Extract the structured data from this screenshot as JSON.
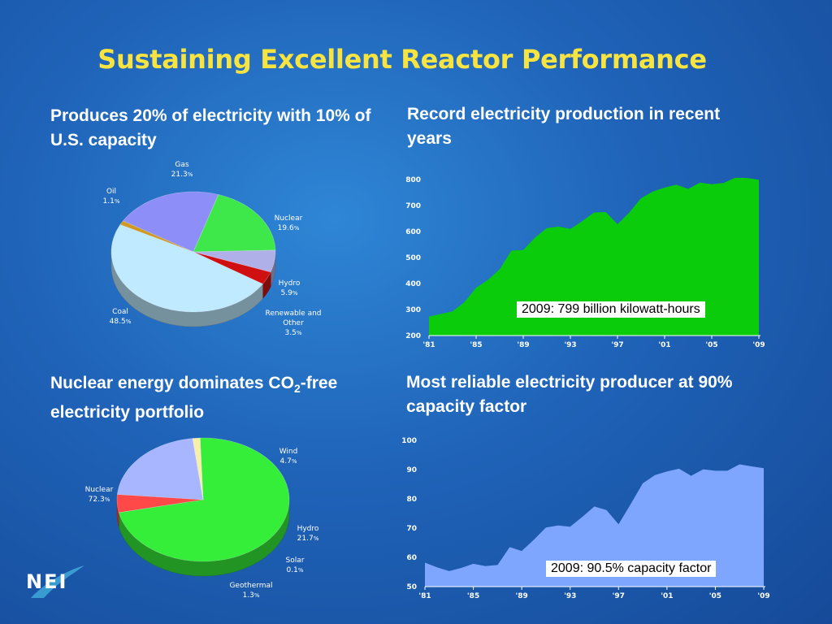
{
  "slide": {
    "title": "Sustaining Excellent Reactor Performance"
  },
  "headings": {
    "top_left": "Produces 20% of electricity with 10% of U.S. capacity",
    "top_right": "Record electricity production in recent years",
    "bottom_left_pre": "Nuclear energy dominates CO",
    "bottom_left_sub": "2",
    "bottom_left_post": "-free electricity portfolio",
    "bottom_right": "Most reliable electricity producer at 90% capacity factor"
  },
  "logo": {
    "text": "NEI"
  },
  "colors": {
    "background": "#1f63b8",
    "title": "#f7e440",
    "production_area": "#0acc0a",
    "capacity_area": "#7ea6ff"
  },
  "chart_data": [
    {
      "id": "generation-mix",
      "type": "pie",
      "title": "",
      "slices": [
        {
          "name": "Gas",
          "value": 21.3,
          "color": "#8e8ef8"
        },
        {
          "name": "Nuclear",
          "value": 19.6,
          "color": "#3fe84a"
        },
        {
          "name": "Hydro",
          "value": 5.9,
          "color": "#b0b0e8"
        },
        {
          "name": "Renewable and Other",
          "value": 3.5,
          "color": "#d01010"
        },
        {
          "name": "Coal",
          "value": 48.5,
          "color": "#bfeaff"
        },
        {
          "name": "Oil",
          "value": 1.1,
          "color": "#d09a20"
        }
      ],
      "labels": [
        {
          "name": "Gas",
          "value": "21.3"
        },
        {
          "name": "Oil",
          "value": "1.1"
        },
        {
          "name": "Nuclear",
          "value": "19.6"
        },
        {
          "name": "Hydro",
          "value": "5.9"
        },
        {
          "name": "Renewable and Other",
          "value": "3.5"
        },
        {
          "name": "Coal",
          "value": "48.5"
        }
      ]
    },
    {
      "id": "electricity-production",
      "type": "area",
      "title": "",
      "x_tick_labels": [
        "'81",
        "'85",
        "'89",
        "'93",
        "'97",
        "'01",
        "'05",
        "'09"
      ],
      "y_tick_labels": [
        "200",
        "300",
        "400",
        "500",
        "600",
        "700",
        "800"
      ],
      "ylim": [
        200,
        800
      ],
      "xlim": [
        1981,
        2009
      ],
      "x": [
        1981,
        1982,
        1983,
        1984,
        1985,
        1986,
        1987,
        1988,
        1989,
        1990,
        1991,
        1992,
        1993,
        1994,
        1995,
        1996,
        1997,
        1998,
        1999,
        2000,
        2001,
        2002,
        2003,
        2004,
        2005,
        2006,
        2007,
        2008,
        2009
      ],
      "values": [
        273,
        283,
        293,
        328,
        384,
        414,
        455,
        527,
        529,
        577,
        613,
        619,
        610,
        640,
        673,
        675,
        628,
        673,
        728,
        754,
        769,
        780,
        764,
        788,
        782,
        787,
        807,
        806,
        799
      ],
      "annotation": "2009: 799 billion kilowatt-hours"
    },
    {
      "id": "co2-free-portfolio",
      "type": "pie",
      "title": "",
      "slices": [
        {
          "name": "Nuclear",
          "value": 72.3,
          "color": "#35ee3a"
        },
        {
          "name": "Wind",
          "value": 4.7,
          "color": "#ff4848"
        },
        {
          "name": "Hydro",
          "value": 21.7,
          "color": "#a8b6ff"
        },
        {
          "name": "Solar",
          "value": 0.1,
          "color": "#f0f0a0"
        },
        {
          "name": "Geothermal",
          "value": 1.3,
          "color": "#f8f0a8"
        }
      ],
      "labels": [
        {
          "name": "Wind",
          "value": "4.7"
        },
        {
          "name": "Nuclear",
          "value": "72.3"
        },
        {
          "name": "Hydro",
          "value": "21.7"
        },
        {
          "name": "Solar",
          "value": "0.1"
        },
        {
          "name": "Geothermal",
          "value": "1.3"
        }
      ]
    },
    {
      "id": "capacity-factor",
      "type": "area",
      "title": "",
      "x_tick_labels": [
        "'81",
        "'85",
        "'89",
        "'93",
        "'97",
        "'01",
        "'05",
        "'09"
      ],
      "y_tick_labels": [
        "50",
        "60",
        "70",
        "80",
        "90",
        "100"
      ],
      "ylim": [
        50,
        100
      ],
      "xlim": [
        1981,
        2009
      ],
      "x": [
        1981,
        1982,
        1983,
        1984,
        1985,
        1986,
        1987,
        1988,
        1989,
        1990,
        1991,
        1992,
        1993,
        1994,
        1995,
        1996,
        1997,
        1998,
        1999,
        2000,
        2001,
        2002,
        2003,
        2004,
        2005,
        2006,
        2007,
        2008,
        2009
      ],
      "values": [
        58.2,
        56.6,
        55.3,
        56.4,
        57.8,
        57.0,
        57.4,
        63.5,
        62.2,
        66.0,
        70.2,
        70.9,
        70.5,
        73.8,
        77.4,
        76.2,
        71.3,
        78.2,
        85.3,
        88.1,
        89.4,
        90.3,
        87.9,
        90.1,
        89.6,
        89.6,
        91.8,
        91.1,
        90.5
      ],
      "annotation": "2009: 90.5% capacity factor"
    }
  ]
}
